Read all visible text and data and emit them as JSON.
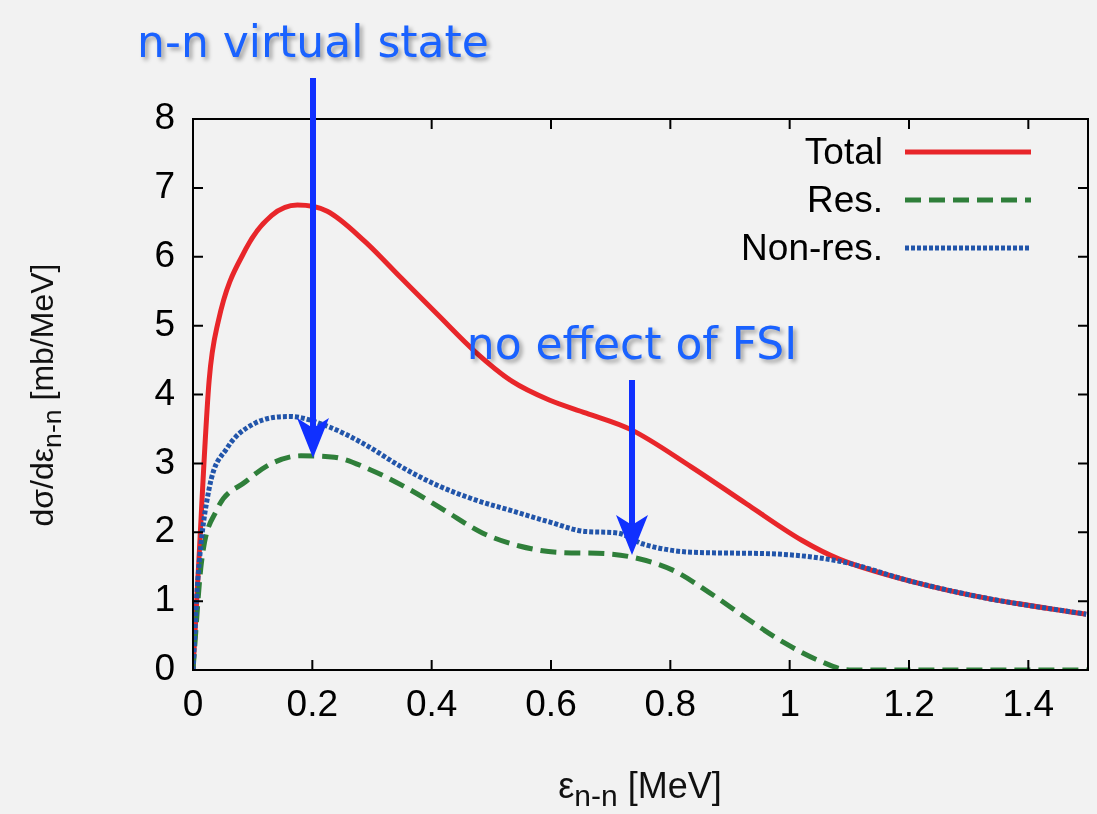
{
  "chart_data": {
    "type": "line",
    "xlabel": "ε$_{n-n}$ [MeV]",
    "ylabel": "dσ/dε$_{n-n}$ [mb/MeV]",
    "xlim": [
      0,
      1.5
    ],
    "xticks": [
      0,
      0.2,
      0.4,
      0.6,
      0.8,
      1,
      1.2,
      1.4
    ],
    "ylim": [
      0,
      8
    ],
    "yticks": [
      0,
      1,
      2,
      3,
      4,
      5,
      6,
      7,
      8
    ],
    "grid": false,
    "legend": "top right",
    "marker": "none",
    "series": [
      {
        "name": "Total",
        "color": "#e8262a",
        "line_style": "solid",
        "x": [
          0,
          0.008,
          0.027,
          0.042,
          0.089,
          0.132,
          0.175,
          0.225,
          0.287,
          0.349,
          0.41,
          0.473,
          0.535,
          0.597,
          0.659,
          0.734,
          0.835,
          0.928,
          1.021,
          1.083,
          1.207,
          1.331,
          1.497
        ],
        "values": [
          0,
          1.29,
          4.2,
          5.05,
          6.12,
          6.6,
          6.75,
          6.66,
          6.23,
          5.69,
          5.16,
          4.62,
          4.19,
          3.92,
          3.73,
          3.49,
          2.95,
          2.41,
          1.88,
          1.61,
          1.28,
          1.04,
          0.81
        ]
      },
      {
        "name": "Res.",
        "color": "#2f7f3a",
        "line_style": "dashed",
        "x": [
          0,
          0.014,
          0.039,
          0.089,
          0.132,
          0.181,
          0.237,
          0.299,
          0.361,
          0.423,
          0.485,
          0.547,
          0.609,
          0.69,
          0.735,
          0.804,
          0.866,
          0.928,
          0.99,
          1.051,
          1.1,
          1.5
        ],
        "values": [
          0,
          1.55,
          2.31,
          2.74,
          3.0,
          3.11,
          3.09,
          2.9,
          2.63,
          2.31,
          1.99,
          1.8,
          1.71,
          1.69,
          1.64,
          1.45,
          1.12,
          0.75,
          0.4,
          0.13,
          0,
          0
        ]
      },
      {
        "name": "Non-res.",
        "color": "#2255aa",
        "line_style": "dotted",
        "x": [
          0,
          0.008,
          0.027,
          0.057,
          0.101,
          0.163,
          0.225,
          0.287,
          0.349,
          0.41,
          0.473,
          0.535,
          0.597,
          0.659,
          0.711,
          0.754,
          0.835,
          0.959,
          1.083,
          1.207,
          1.331,
          1.497
        ],
        "values": [
          0,
          1.3,
          2.63,
          3.22,
          3.57,
          3.68,
          3.54,
          3.28,
          2.95,
          2.68,
          2.47,
          2.31,
          2.15,
          2.01,
          1.99,
          1.83,
          1.71,
          1.69,
          1.58,
          1.28,
          1.04,
          0.81
        ]
      }
    ],
    "annotations": [
      "n-n virtual state",
      "no effect of FSI"
    ]
  }
}
